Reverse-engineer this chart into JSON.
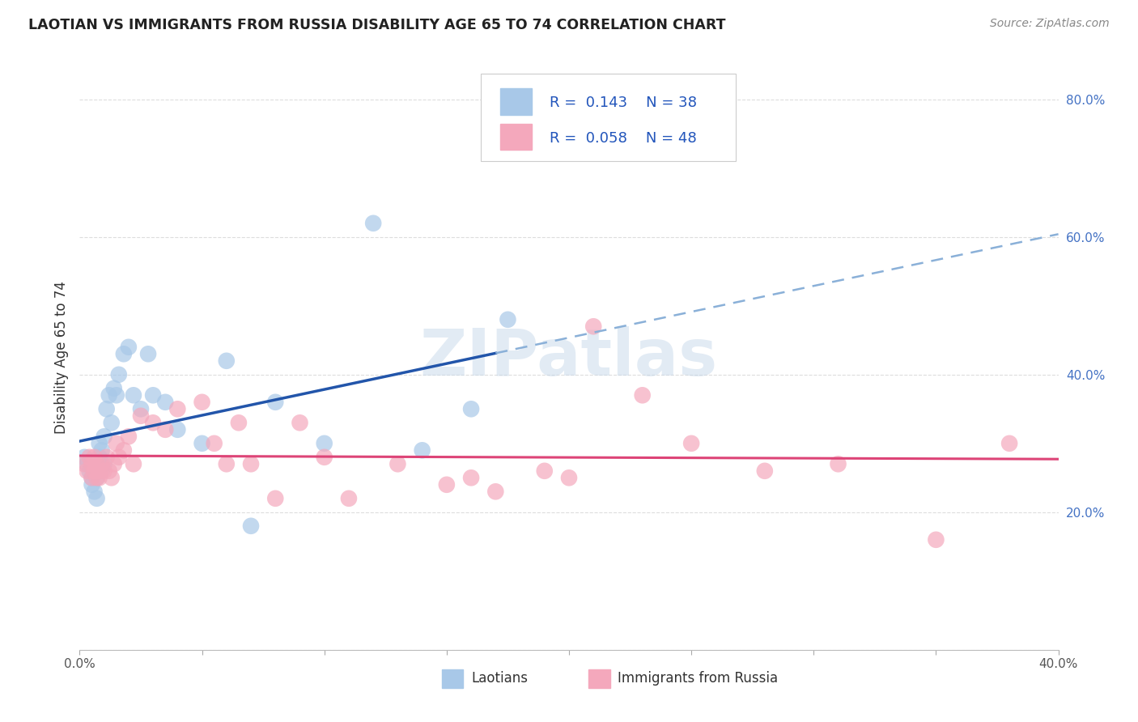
{
  "title": "LAOTIAN VS IMMIGRANTS FROM RUSSIA DISABILITY AGE 65 TO 74 CORRELATION CHART",
  "source": "Source: ZipAtlas.com",
  "ylabel": "Disability Age 65 to 74",
  "xlim": [
    0.0,
    0.4
  ],
  "ylim": [
    0.0,
    0.85
  ],
  "xticks": [
    0.0,
    0.05,
    0.1,
    0.15,
    0.2,
    0.25,
    0.3,
    0.35,
    0.4
  ],
  "yticks": [
    0.0,
    0.2,
    0.4,
    0.6,
    0.8
  ],
  "ytick_labels": [
    "",
    "20.0%",
    "40.0%",
    "60.0%",
    "80.0%"
  ],
  "xtick_labels": [
    "0.0%",
    "",
    "",
    "",
    "",
    "",
    "",
    "",
    "40.0%"
  ],
  "watermark": "ZIPatlas",
  "blue_color": "#a8c8e8",
  "pink_color": "#f4a8bc",
  "blue_line_color": "#2255aa",
  "blue_dash_color": "#8ab0d8",
  "pink_line_color": "#dd4477",
  "laotian_x": [
    0.002,
    0.003,
    0.004,
    0.005,
    0.005,
    0.006,
    0.006,
    0.007,
    0.007,
    0.008,
    0.008,
    0.009,
    0.009,
    0.01,
    0.01,
    0.011,
    0.012,
    0.013,
    0.014,
    0.015,
    0.016,
    0.018,
    0.02,
    0.022,
    0.025,
    0.028,
    0.03,
    0.035,
    0.04,
    0.05,
    0.06,
    0.07,
    0.08,
    0.1,
    0.12,
    0.14,
    0.16,
    0.175
  ],
  "laotian_y": [
    0.28,
    0.27,
    0.26,
    0.25,
    0.24,
    0.26,
    0.23,
    0.25,
    0.22,
    0.28,
    0.3,
    0.29,
    0.26,
    0.31,
    0.27,
    0.35,
    0.37,
    0.33,
    0.38,
    0.37,
    0.4,
    0.43,
    0.44,
    0.37,
    0.35,
    0.43,
    0.37,
    0.36,
    0.32,
    0.3,
    0.42,
    0.18,
    0.36,
    0.3,
    0.62,
    0.29,
    0.35,
    0.48
  ],
  "russia_x": [
    0.002,
    0.003,
    0.004,
    0.005,
    0.005,
    0.006,
    0.006,
    0.007,
    0.007,
    0.008,
    0.008,
    0.009,
    0.01,
    0.011,
    0.012,
    0.013,
    0.014,
    0.015,
    0.016,
    0.018,
    0.02,
    0.022,
    0.025,
    0.03,
    0.035,
    0.04,
    0.05,
    0.055,
    0.06,
    0.065,
    0.07,
    0.08,
    0.09,
    0.1,
    0.11,
    0.13,
    0.15,
    0.16,
    0.17,
    0.19,
    0.2,
    0.21,
    0.23,
    0.25,
    0.28,
    0.31,
    0.35,
    0.38
  ],
  "russia_y": [
    0.27,
    0.26,
    0.28,
    0.25,
    0.27,
    0.26,
    0.28,
    0.25,
    0.27,
    0.26,
    0.25,
    0.27,
    0.26,
    0.28,
    0.26,
    0.25,
    0.27,
    0.3,
    0.28,
    0.29,
    0.31,
    0.27,
    0.34,
    0.33,
    0.32,
    0.35,
    0.36,
    0.3,
    0.27,
    0.33,
    0.27,
    0.22,
    0.33,
    0.28,
    0.22,
    0.27,
    0.24,
    0.25,
    0.23,
    0.26,
    0.25,
    0.47,
    0.37,
    0.3,
    0.26,
    0.27,
    0.16,
    0.3
  ],
  "background_color": "#ffffff",
  "grid_color": "#dddddd"
}
